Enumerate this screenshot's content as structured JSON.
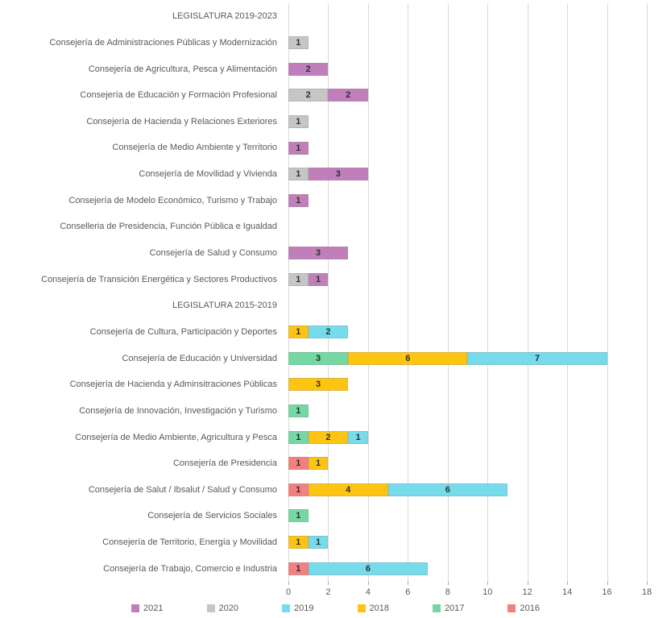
{
  "chart_data": {
    "type": "bar",
    "orientation": "horizontal",
    "stacked": true,
    "title": "",
    "xlabel": "",
    "ylabel": "",
    "xlim": [
      0,
      18
    ],
    "x_ticks": [
      0,
      2,
      4,
      6,
      8,
      10,
      12,
      14,
      16,
      18
    ],
    "grid": true,
    "legend_position": "bottom",
    "series_order": [
      "2021",
      "2020",
      "2019",
      "2018",
      "2017",
      "2016"
    ],
    "series_colors": {
      "2021": "#c07fbb",
      "2020": "#c6c6c6",
      "2019": "#76dcec",
      "2018": "#fdc511",
      "2017": "#74d8a4",
      "2016": "#f47f80"
    },
    "rows": [
      {
        "label": "LEGISLATURA 2019-2023",
        "header": true,
        "segments": []
      },
      {
        "label": "Consejería de Administraciones Públicas y Modernización",
        "header": false,
        "segments": [
          {
            "series": "2020",
            "value": 1
          }
        ]
      },
      {
        "label": "Consejería de Agricultura, Pesca y Alimentación",
        "header": false,
        "segments": [
          {
            "series": "2021",
            "value": 2
          }
        ]
      },
      {
        "label": "Consejería de Educación y Formación Profesional",
        "header": false,
        "segments": [
          {
            "series": "2020",
            "value": 2
          },
          {
            "series": "2021",
            "value": 2
          }
        ]
      },
      {
        "label": "Consejería de Hacienda y Relaciones Exteriores",
        "header": false,
        "segments": [
          {
            "series": "2020",
            "value": 1
          }
        ]
      },
      {
        "label": "Consejería de Medio Ambiente y Territorio",
        "header": false,
        "segments": [
          {
            "series": "2021",
            "value": 1
          }
        ]
      },
      {
        "label": "Consejería de Movilidad y Vivienda",
        "header": false,
        "segments": [
          {
            "series": "2020",
            "value": 1
          },
          {
            "series": "2021",
            "value": 3
          }
        ]
      },
      {
        "label": "Consejería de Modelo Económico, Turismo y Trabajo",
        "header": false,
        "segments": [
          {
            "series": "2021",
            "value": 1
          }
        ]
      },
      {
        "label": "Conselleria de Presidencia, Función Pública e Igualdad",
        "header": false,
        "segments": []
      },
      {
        "label": "Consejería de Salud y Consumo",
        "header": false,
        "segments": [
          {
            "series": "2021",
            "value": 3
          }
        ]
      },
      {
        "label": "Consejería de Transición Energética y Sectores Productivos",
        "header": false,
        "segments": [
          {
            "series": "2020",
            "value": 1
          },
          {
            "series": "2021",
            "value": 1
          }
        ]
      },
      {
        "label": "LEGISLATURA 2015-2019",
        "header": true,
        "segments": []
      },
      {
        "label": "Consejería de Cultura, Participación y Deportes",
        "header": false,
        "segments": [
          {
            "series": "2018",
            "value": 1
          },
          {
            "series": "2019",
            "value": 2
          }
        ]
      },
      {
        "label": "Consejería de Educación y Universidad",
        "header": false,
        "segments": [
          {
            "series": "2017",
            "value": 3
          },
          {
            "series": "2018",
            "value": 6
          },
          {
            "series": "2019",
            "value": 7
          }
        ]
      },
      {
        "label": "Consejería de Hacienda y Adminsitraciones Públicas",
        "header": false,
        "segments": [
          {
            "series": "2018",
            "value": 3
          }
        ]
      },
      {
        "label": "Consejería de Innovación, Investigación y Turismo",
        "header": false,
        "segments": [
          {
            "series": "2017",
            "value": 1
          }
        ]
      },
      {
        "label": "Consejería de Medio Ambiente, Agricultura y Pesca",
        "header": false,
        "segments": [
          {
            "series": "2017",
            "value": 1
          },
          {
            "series": "2018",
            "value": 2
          },
          {
            "series": "2019",
            "value": 1
          }
        ]
      },
      {
        "label": "Consejería de Presidencia",
        "header": false,
        "segments": [
          {
            "series": "2016",
            "value": 1
          },
          {
            "series": "2018",
            "value": 1
          }
        ]
      },
      {
        "label": "Consejería de Salut / Ibsalut / Salud y Consumo",
        "header": false,
        "segments": [
          {
            "series": "2016",
            "value": 1
          },
          {
            "series": "2018",
            "value": 4
          },
          {
            "series": "2019",
            "value": 6
          }
        ]
      },
      {
        "label": "Consejería de Servicios Sociales",
        "header": false,
        "segments": [
          {
            "series": "2017",
            "value": 1
          }
        ]
      },
      {
        "label": "Consejería de Territorio, Energía y Movilidad",
        "header": false,
        "segments": [
          {
            "series": "2018",
            "value": 1
          },
          {
            "series": "2019",
            "value": 1
          }
        ]
      },
      {
        "label": "Consejería de Trabajo, Comercio e Industria",
        "header": false,
        "segments": [
          {
            "series": "2016",
            "value": 1
          },
          {
            "series": "2019",
            "value": 6
          }
        ]
      }
    ],
    "legend": [
      {
        "label": "2021",
        "color": "#c07fbb"
      },
      {
        "label": "2020",
        "color": "#c6c6c6"
      },
      {
        "label": "2019",
        "color": "#76dcec"
      },
      {
        "label": "2018",
        "color": "#fdc511"
      },
      {
        "label": "2017",
        "color": "#74d8a4"
      },
      {
        "label": "2016",
        "color": "#f47f80"
      }
    ],
    "style_colors": {
      "gridline": "#d9d9d9",
      "tick_mark": "#a6a6a6",
      "axis_text": "#595959",
      "category_text": "#595959",
      "data_label_text": "#2e2e2e"
    }
  }
}
